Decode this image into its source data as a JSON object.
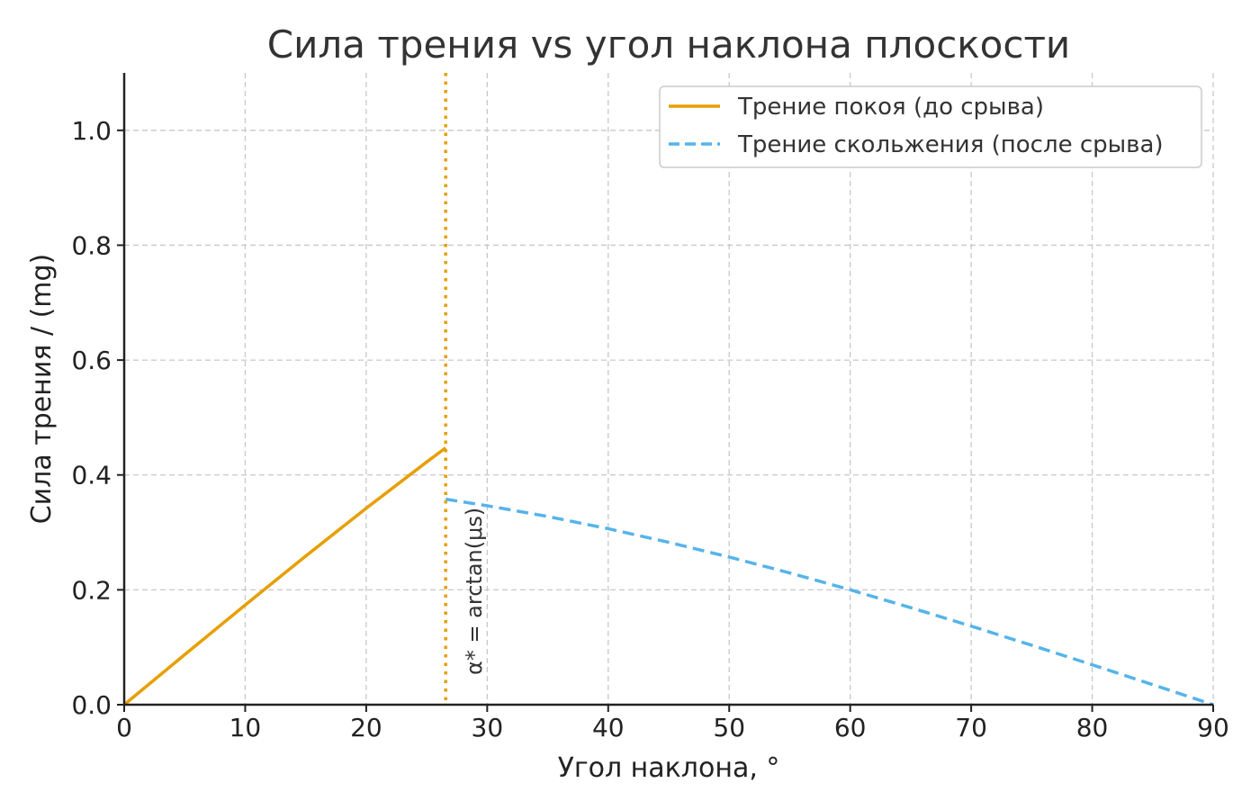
{
  "chart_data": {
    "type": "line",
    "title": "Сила трения vs угол наклона плоскости",
    "xlabel": "Угол наклона, °",
    "ylabel": "Сила трения / (mg)",
    "xlim": [
      0,
      90
    ],
    "ylim": [
      0,
      1.1
    ],
    "xticks": [
      0,
      10,
      20,
      30,
      40,
      50,
      60,
      70,
      80,
      90
    ],
    "yticks": [
      "0.0",
      "0.2",
      "0.4",
      "0.6",
      "0.8",
      "1.0"
    ],
    "grid": true,
    "legend_position": "top-right",
    "series": [
      {
        "name": "Трение покоя (до срыва)",
        "color": "#E69F00",
        "style": "solid",
        "x": [
          0,
          5,
          10,
          15,
          20,
          25,
          26.57
        ],
        "y": [
          0,
          0.0872,
          0.1736,
          0.2588,
          0.342,
          0.4226,
          0.4472
        ]
      },
      {
        "name": "Трение скольжения (после срыва)",
        "color": "#56B4E9",
        "style": "dashed",
        "x": [
          26.57,
          30,
          35,
          40,
          45,
          50,
          55,
          60,
          65,
          70,
          75,
          80,
          85,
          90
        ],
        "y": [
          0.3578,
          0.3464,
          0.3277,
          0.3064,
          0.2828,
          0.2571,
          0.2294,
          0.2,
          0.169,
          0.1368,
          0.1035,
          0.0695,
          0.0349,
          0
        ]
      }
    ],
    "vline": {
      "x": 26.57,
      "color": "#E69F00",
      "style": "dotted",
      "label": "α* = arctan(μs)"
    }
  }
}
